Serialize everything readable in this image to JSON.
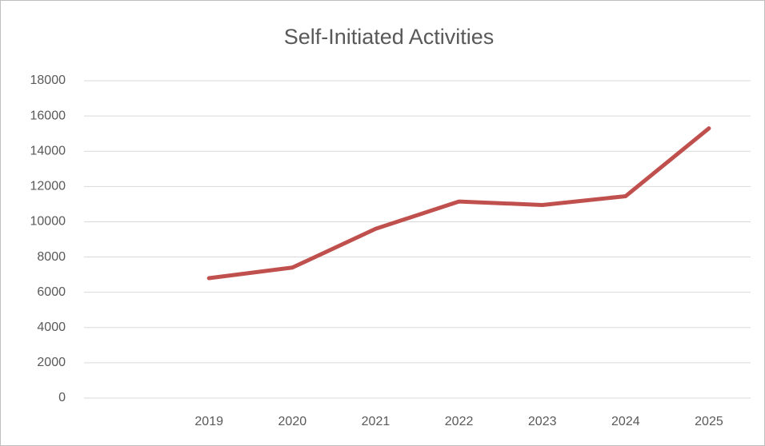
{
  "chart_data": {
    "type": "line",
    "title": "Self-Initiated Activities",
    "categories": [
      null,
      "2019",
      "2020",
      "2021",
      "2022",
      "2023",
      "2024",
      "2025"
    ],
    "series": [
      {
        "name": "Self-Initiated Activities",
        "color": "#c0504d",
        "values": [
          null,
          6800,
          7400,
          9600,
          11150,
          10950,
          11450,
          15300
        ]
      }
    ],
    "ylim": [
      0,
      18000
    ],
    "yticks": [
      0,
      2000,
      4000,
      6000,
      8000,
      10000,
      12000,
      14000,
      16000,
      18000
    ],
    "grid": true
  }
}
